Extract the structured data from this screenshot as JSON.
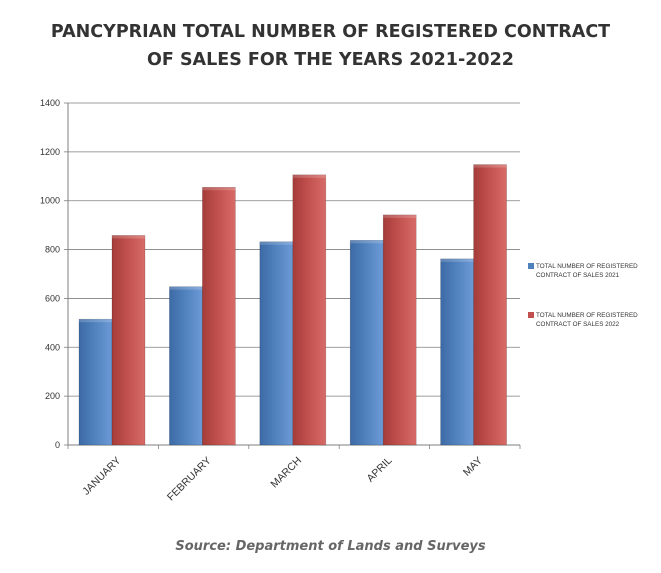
{
  "title_line1": "PANCYPRIAN TOTAL NUMBER OF REGISTERED CONTRACT",
  "title_line2": "OF SALES FOR THE YEARS 2021-2022",
  "source": "Source: Department  of Lands and Surveys",
  "colors": {
    "series_2021": "#4f81bd",
    "series_2022": "#c0504d",
    "grid": "#7f7f7f",
    "text": "#333333"
  },
  "chart_data": {
    "type": "bar",
    "title": "PANCYPRIAN TOTAL NUMBER OF REGISTERED CONTRACT OF SALES FOR THE YEARS 2021-2022",
    "categories": [
      "JANUARY",
      "FEBRUARY",
      "MARCH",
      "APRIL",
      "MAY"
    ],
    "series": [
      {
        "name": "TOTAL NUMBER OF REGISTERED CONTRACT OF SALES 2021",
        "values": [
          515,
          648,
          832,
          838,
          762
        ]
      },
      {
        "name": "TOTAL NUMBER OF REGISTERED CONTRACT OF SALES 2022",
        "values": [
          858,
          1055,
          1106,
          942,
          1148
        ]
      }
    ],
    "ylim": [
      0,
      1400
    ],
    "yticks": [
      0,
      200,
      400,
      600,
      800,
      1000,
      1200,
      1400
    ],
    "ytick_labels": [
      "0",
      "200",
      "400",
      "600",
      "800",
      "1000",
      "1200",
      "1400"
    ],
    "xlabel": "",
    "ylabel": "",
    "grid": true,
    "legend_position": "right"
  }
}
